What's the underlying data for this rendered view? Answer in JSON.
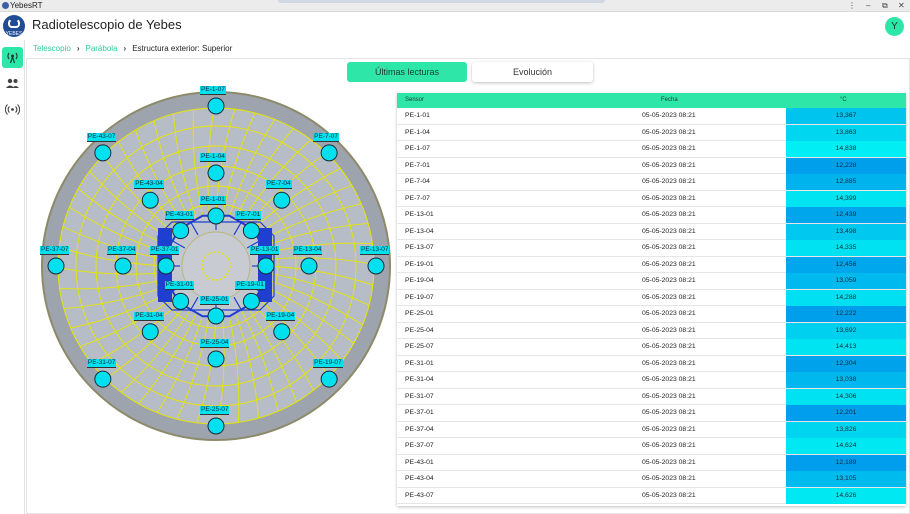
{
  "window": {
    "title": "YebesRT",
    "controls": [
      "⋮",
      "–",
      "⧉",
      "✕"
    ]
  },
  "app": {
    "title": "Radiotelescopio de Yebes",
    "logo_text": "YEBES",
    "user_initial": "Y"
  },
  "sidebar": {
    "items": [
      {
        "icon": "antenna-icon",
        "active": true
      },
      {
        "icon": "people-icon",
        "active": false
      },
      {
        "icon": "broadcast-icon",
        "active": false
      }
    ]
  },
  "breadcrumb": {
    "items": [
      "Telescopio",
      "Parábola",
      "Estructura exterior: Superior"
    ]
  },
  "tabs": {
    "active": "Últimas lecturas",
    "inactive": "Evolución"
  },
  "colors": {
    "accent": "#2ee6a8",
    "label_bg": "#00e0ee",
    "dish_fill": "#b7bdc6",
    "grid_line": "#e6e600",
    "structure": "#1f3fd1"
  },
  "dish_sensors": [
    {
      "id": "PE-1-07"
    },
    {
      "id": "PE-1-04"
    },
    {
      "id": "PE-1-01"
    },
    {
      "id": "PE-7-07"
    },
    {
      "id": "PE-7-04"
    },
    {
      "id": "PE-7-01"
    },
    {
      "id": "PE-13-07"
    },
    {
      "id": "PE-13-04"
    },
    {
      "id": "PE-13-01"
    },
    {
      "id": "PE-19-07"
    },
    {
      "id": "PE-19-04"
    },
    {
      "id": "PE-19-01"
    },
    {
      "id": "PE-25-07"
    },
    {
      "id": "PE-25-04"
    },
    {
      "id": "PE-25-01"
    },
    {
      "id": "PE-31-07"
    },
    {
      "id": "PE-31-04"
    },
    {
      "id": "PE-31-01"
    },
    {
      "id": "PE-37-07"
    },
    {
      "id": "PE-37-04"
    },
    {
      "id": "PE-37-01"
    },
    {
      "id": "PE-43-07"
    },
    {
      "id": "PE-43-04"
    },
    {
      "id": "PE-43-01"
    }
  ],
  "table": {
    "headers": {
      "sensor": "Sensor",
      "date": "Fecha",
      "temp": "°C"
    },
    "rows": [
      {
        "sensor": "PE-1-01",
        "date": "05-05-2023 08:21",
        "temp": "13,367",
        "color": "#00c4ee"
      },
      {
        "sensor": "PE-1-04",
        "date": "05-05-2023 08:21",
        "temp": "13,863",
        "color": "#00d6f0"
      },
      {
        "sensor": "PE-1-07",
        "date": "05-05-2023 08:21",
        "temp": "14,838",
        "color": "#00eef4"
      },
      {
        "sensor": "PE-7-01",
        "date": "05-05-2023 08:21",
        "temp": "12,228",
        "color": "#009fec"
      },
      {
        "sensor": "PE-7-04",
        "date": "05-05-2023 08:21",
        "temp": "12,885",
        "color": "#00b3ed"
      },
      {
        "sensor": "PE-7-07",
        "date": "05-05-2023 08:21",
        "temp": "14,399",
        "color": "#00e4f2"
      },
      {
        "sensor": "PE-13-01",
        "date": "05-05-2023 08:21",
        "temp": "12,439",
        "color": "#00a6ec"
      },
      {
        "sensor": "PE-13-04",
        "date": "05-05-2023 08:21",
        "temp": "13,498",
        "color": "#00c8ef"
      },
      {
        "sensor": "PE-13-07",
        "date": "05-05-2023 08:21",
        "temp": "14,335",
        "color": "#00e2f2"
      },
      {
        "sensor": "PE-19-01",
        "date": "05-05-2023 08:21",
        "temp": "12,456",
        "color": "#00a7ec"
      },
      {
        "sensor": "PE-19-04",
        "date": "05-05-2023 08:21",
        "temp": "13,059",
        "color": "#00b9ee"
      },
      {
        "sensor": "PE-19-07",
        "date": "05-05-2023 08:21",
        "temp": "14,288",
        "color": "#00e0f2"
      },
      {
        "sensor": "PE-25-01",
        "date": "05-05-2023 08:21",
        "temp": "12,222",
        "color": "#009fec"
      },
      {
        "sensor": "PE-25-04",
        "date": "05-05-2023 08:21",
        "temp": "13,692",
        "color": "#00d0f0"
      },
      {
        "sensor": "PE-25-07",
        "date": "05-05-2023 08:21",
        "temp": "14,413",
        "color": "#00e4f2"
      },
      {
        "sensor": "PE-31-01",
        "date": "05-05-2023 08:21",
        "temp": "12,304",
        "color": "#00a2ec"
      },
      {
        "sensor": "PE-31-04",
        "date": "05-05-2023 08:21",
        "temp": "13,038",
        "color": "#00b8ee"
      },
      {
        "sensor": "PE-31-07",
        "date": "05-05-2023 08:21",
        "temp": "14,306",
        "color": "#00e1f2"
      },
      {
        "sensor": "PE-37-01",
        "date": "05-05-2023 08:21",
        "temp": "12,201",
        "color": "#009eec"
      },
      {
        "sensor": "PE-37-04",
        "date": "05-05-2023 08:21",
        "temp": "13,826",
        "color": "#00d5f0"
      },
      {
        "sensor": "PE-37-07",
        "date": "05-05-2023 08:21",
        "temp": "14,624",
        "color": "#00e9f3"
      },
      {
        "sensor": "PE-43-01",
        "date": "05-05-2023 08:21",
        "temp": "12,189",
        "color": "#009eec"
      },
      {
        "sensor": "PE-43-04",
        "date": "05-05-2023 08:21",
        "temp": "13,105",
        "color": "#00bbee"
      },
      {
        "sensor": "PE-43-07",
        "date": "05-05-2023 08:21",
        "temp": "14,626",
        "color": "#00e9f3"
      }
    ]
  }
}
